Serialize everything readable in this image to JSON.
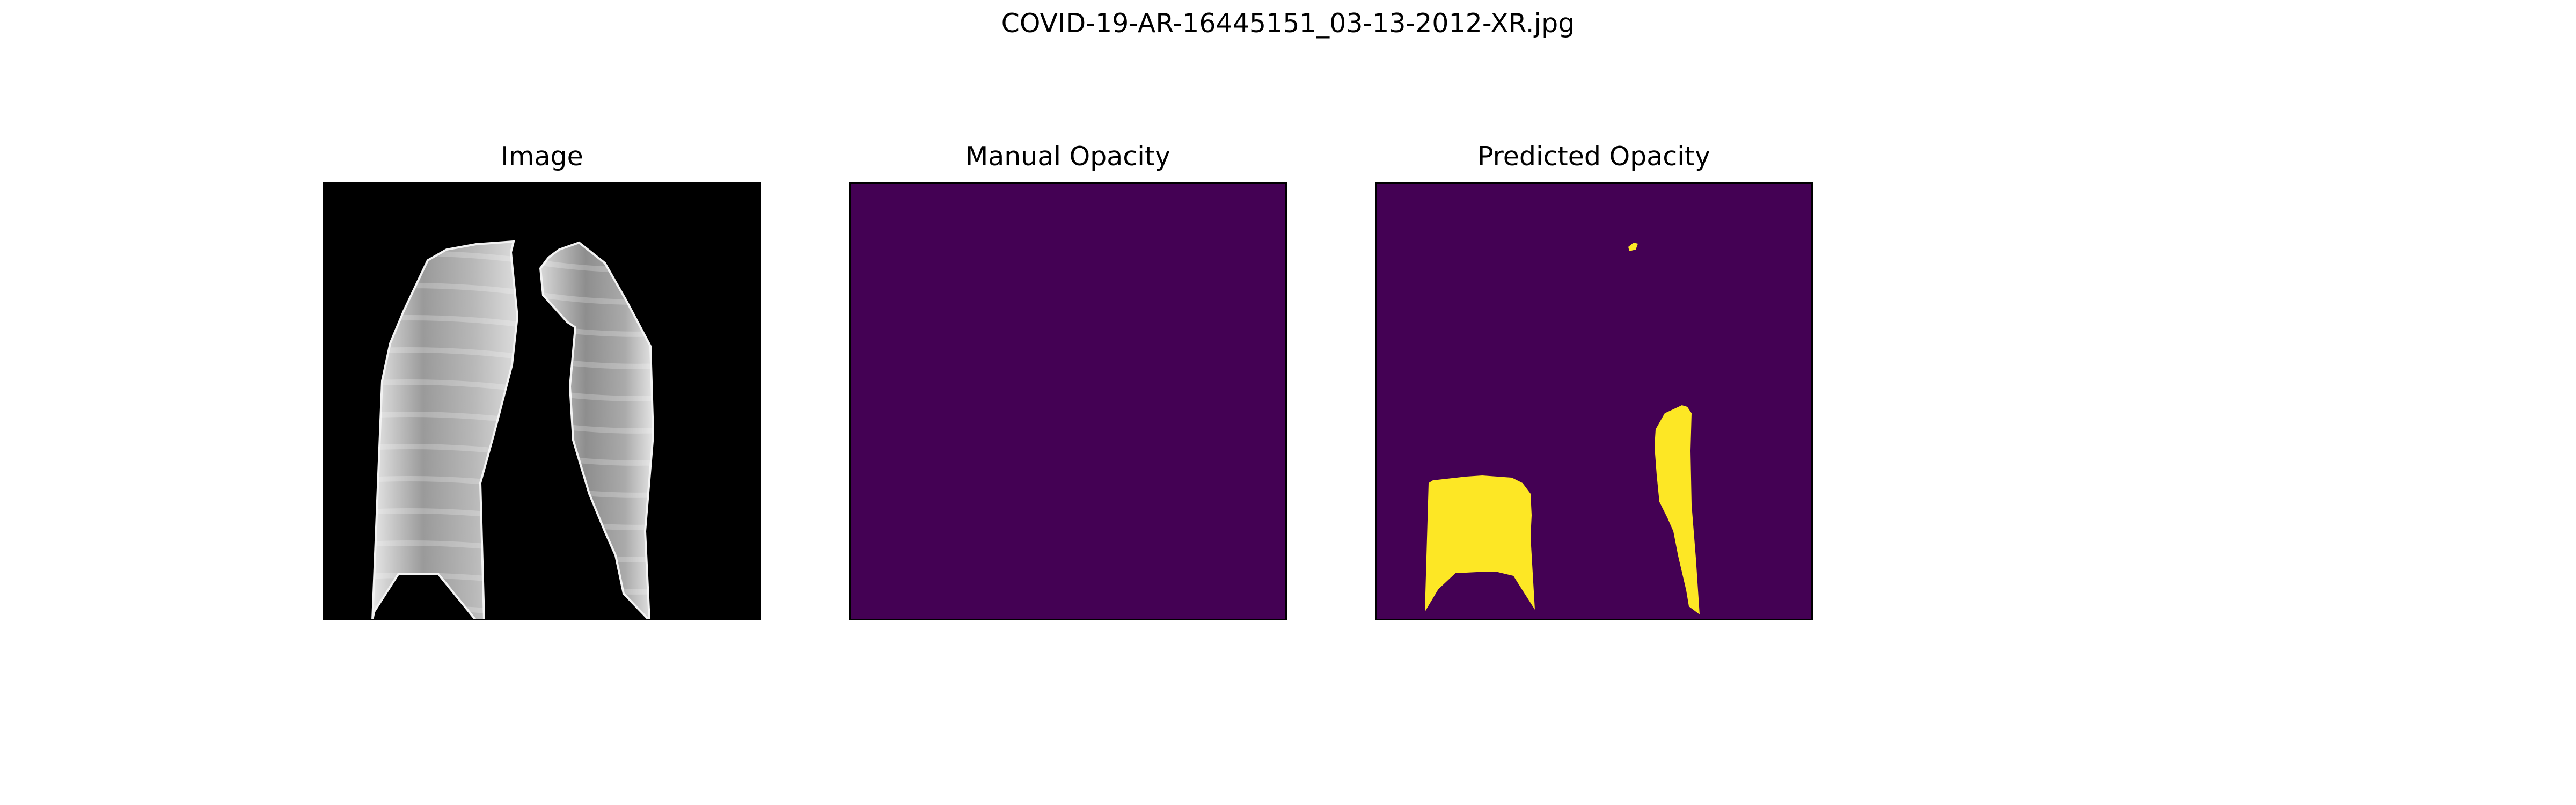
{
  "figure": {
    "title": "COVID-19-AR-16445151_03-13-2012-XR.jpg"
  },
  "panels": [
    {
      "title": "Image",
      "content": "chest-xray-lungs",
      "background": "#000000"
    },
    {
      "title": "Manual Opacity",
      "content": "empty-mask",
      "background": "#440154"
    },
    {
      "title": "Predicted Opacity",
      "content": "predicted-mask",
      "background": "#440154",
      "mask_color": "#fde725"
    }
  ],
  "colors": {
    "mask_background": "#440154",
    "mask_foreground": "#fde725",
    "frame": "#000000"
  }
}
